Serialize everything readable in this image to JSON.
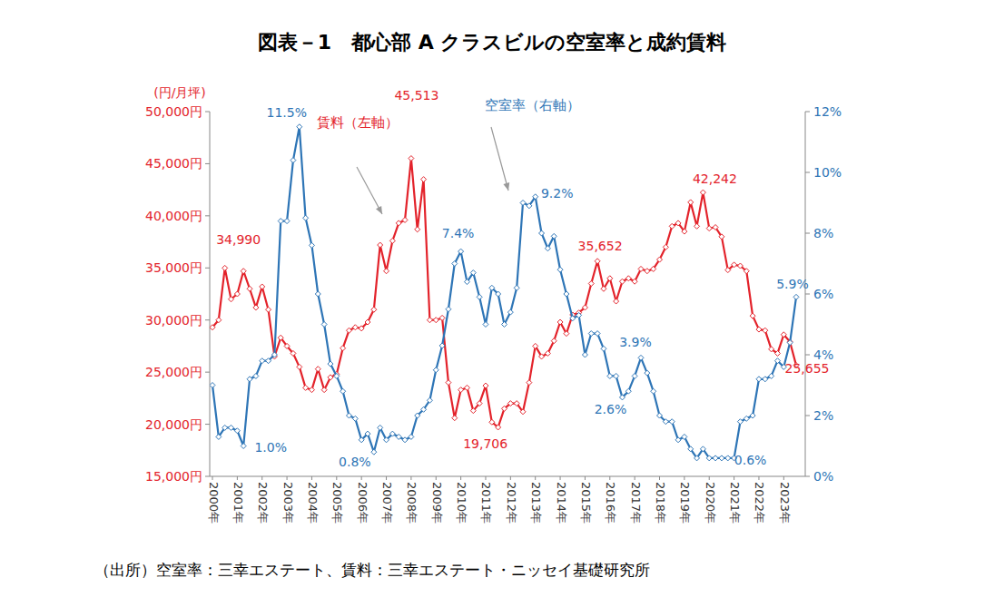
{
  "chart_data": {
    "type": "line",
    "title": "図表－1　都心部 A クラスビルの空室率と成約賃料",
    "y_label": "(円/月坪)",
    "source": "（出所）空室率：三幸エステート、賃料：三幸エステート・ニッセイ基礎研究所",
    "grid": false,
    "marker": "diamond",
    "categories": [
      "2000年",
      null,
      null,
      null,
      "2001年",
      null,
      null,
      null,
      "2002年",
      null,
      null,
      null,
      "2003年",
      null,
      null,
      null,
      "2004年",
      null,
      null,
      null,
      "2005年",
      null,
      null,
      null,
      "2006年",
      null,
      null,
      null,
      "2007年",
      null,
      null,
      null,
      "2008年",
      null,
      null,
      null,
      "2009年",
      null,
      null,
      null,
      "2010年",
      null,
      null,
      null,
      "2011年",
      null,
      null,
      null,
      "2012年",
      null,
      null,
      null,
      "2013年",
      null,
      null,
      null,
      "2014年",
      null,
      null,
      null,
      "2015年",
      null,
      null,
      null,
      "2016年",
      null,
      null,
      null,
      "2017年",
      null,
      null,
      null,
      "2018年",
      null,
      null,
      null,
      "2019年",
      null,
      null,
      null,
      "2020年",
      null,
      null,
      null,
      "2021年",
      null,
      null,
      null,
      "2022年",
      null,
      null,
      null,
      "2023年",
      null,
      null
    ],
    "ylim": [
      15000,
      50000
    ],
    "yticks": [
      {
        "value": 15000,
        "label": "15,000円"
      },
      {
        "value": 20000,
        "label": "20,000円"
      },
      {
        "value": 25000,
        "label": "25,000円"
      },
      {
        "value": 30000,
        "label": "30,000円"
      },
      {
        "value": 35000,
        "label": "35,000円"
      },
      {
        "value": 40000,
        "label": "40,000円"
      },
      {
        "value": 45000,
        "label": "45,000円"
      },
      {
        "value": 50000,
        "label": "50,000円"
      }
    ],
    "y2lim": [
      0,
      12
    ],
    "y2ticks": [
      {
        "value": 0,
        "label": "0%"
      },
      {
        "value": 2,
        "label": "2%"
      },
      {
        "value": 4,
        "label": "4%"
      },
      {
        "value": 6,
        "label": "6%"
      },
      {
        "value": 8,
        "label": "8%"
      },
      {
        "value": 10,
        "label": "10%"
      },
      {
        "value": 12,
        "label": "12%"
      }
    ],
    "series": [
      {
        "name": "賃料（左軸）",
        "color": "#e3232b",
        "axis": "y",
        "values": [
          29300,
          30000,
          34990,
          32000,
          32500,
          34700,
          33000,
          31200,
          33200,
          31000,
          26500,
          28300,
          27500,
          26800,
          25500,
          23500,
          23300,
          25300,
          23300,
          24500,
          24800,
          27300,
          29000,
          29300,
          29200,
          29800,
          31000,
          37200,
          34700,
          37600,
          39300,
          39600,
          45513,
          38700,
          43500,
          30000,
          30000,
          30200,
          24000,
          20600,
          23300,
          23500,
          21300,
          22000,
          23700,
          20200,
          19706,
          21500,
          22000,
          22000,
          21200,
          24000,
          27500,
          26500,
          26800,
          28000,
          29800,
          28700,
          30500,
          30700,
          31200,
          33500,
          35652,
          33000,
          34000,
          31800,
          33700,
          34000,
          33700,
          34900,
          34700,
          34900,
          35800,
          37000,
          39000,
          39300,
          38500,
          41300,
          39000,
          42242,
          38800,
          38900,
          38000,
          34800,
          35300,
          35200,
          34700,
          30400,
          29100,
          29000,
          27200,
          26800,
          28600,
          27900,
          25655
        ]
      },
      {
        "name": "空室率（右軸）",
        "color": "#2e75b6",
        "axis": "y2",
        "values": [
          3.0,
          1.3,
          1.6,
          1.6,
          1.5,
          1.0,
          3.2,
          3.3,
          3.8,
          3.8,
          4.0,
          8.4,
          8.4,
          10.4,
          11.5,
          8.5,
          7.6,
          6.0,
          5.0,
          3.7,
          3.3,
          2.8,
          2.0,
          1.9,
          1.2,
          1.4,
          0.8,
          1.6,
          1.2,
          1.4,
          1.3,
          1.2,
          1.3,
          2.0,
          2.2,
          2.5,
          3.5,
          4.3,
          5.5,
          7.0,
          7.4,
          6.4,
          6.7,
          5.9,
          5.0,
          6.2,
          6.0,
          5.0,
          5.4,
          6.2,
          9.0,
          8.9,
          9.2,
          8.0,
          7.5,
          7.9,
          6.8,
          6.0,
          5.2,
          5.3,
          4.0,
          4.7,
          4.7,
          4.2,
          3.3,
          3.3,
          2.6,
          2.8,
          3.3,
          3.9,
          3.4,
          2.8,
          2.0,
          1.8,
          1.8,
          1.2,
          1.3,
          0.9,
          0.6,
          0.9,
          0.6,
          0.6,
          0.6,
          0.6,
          0.6,
          1.8,
          1.9,
          2.0,
          3.2,
          3.2,
          3.3,
          3.8,
          3.6,
          4.4,
          5.9
        ]
      }
    ],
    "annotations": [
      {
        "text": "34,990",
        "series": 0,
        "index": 2
      },
      {
        "text": "45,513",
        "series": 0,
        "index": 32
      },
      {
        "text": "19,706",
        "series": 0,
        "index": 46
      },
      {
        "text": "35,652",
        "series": 0,
        "index": 62
      },
      {
        "text": "42,242",
        "series": 0,
        "index": 79
      },
      {
        "text": "25,655",
        "series": 0,
        "index": 94
      },
      {
        "text": "11.5%",
        "series": 1,
        "index": 14
      },
      {
        "text": "1.0%",
        "series": 1,
        "index": 5
      },
      {
        "text": "0.8%",
        "series": 1,
        "index": 26
      },
      {
        "text": "7.4%",
        "series": 1,
        "index": 40
      },
      {
        "text": "9.2%",
        "series": 1,
        "index": 52
      },
      {
        "text": "2.6%",
        "series": 1,
        "index": 66
      },
      {
        "text": "3.9%",
        "series": 1,
        "index": 69
      },
      {
        "text": "0.6%",
        "series": 1,
        "index": 84
      },
      {
        "text": "5.9%",
        "series": 1,
        "index": 94
      }
    ]
  }
}
